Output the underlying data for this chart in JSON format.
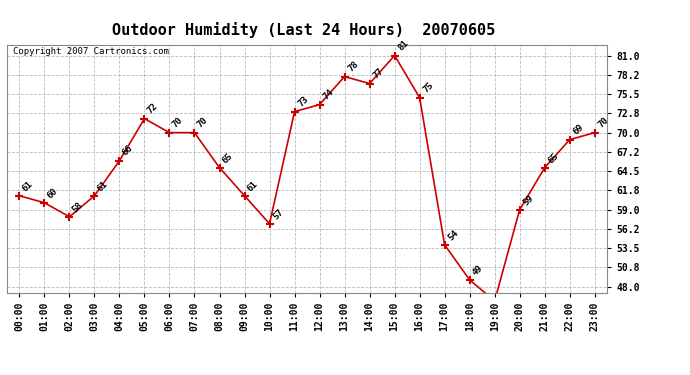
{
  "title": "Outdoor Humidity (Last 24 Hours)  20070605",
  "copyright": "Copyright 2007 Cartronics.com",
  "hours": [
    0,
    1,
    2,
    3,
    4,
    5,
    6,
    7,
    8,
    9,
    10,
    11,
    12,
    13,
    14,
    15,
    16,
    17,
    18,
    19,
    20,
    21,
    22,
    23
  ],
  "hour_labels": [
    "00:00",
    "01:00",
    "02:00",
    "03:00",
    "04:00",
    "05:00",
    "06:00",
    "07:00",
    "08:00",
    "09:00",
    "10:00",
    "11:00",
    "12:00",
    "13:00",
    "14:00",
    "15:00",
    "16:00",
    "17:00",
    "18:00",
    "19:00",
    "20:00",
    "21:00",
    "22:00",
    "23:00"
  ],
  "values": [
    61,
    60,
    58,
    61,
    66,
    72,
    70,
    70,
    65,
    61,
    57,
    73,
    74,
    78,
    77,
    81,
    75,
    54,
    49,
    46,
    59,
    65,
    69,
    70
  ],
  "yticks": [
    48.0,
    50.8,
    53.5,
    56.2,
    59.0,
    61.8,
    64.5,
    67.2,
    70.0,
    72.8,
    75.5,
    78.2,
    81.0
  ],
  "ylim": [
    47.2,
    82.5
  ],
  "xlim": [
    -0.5,
    23.5
  ],
  "line_color": "#cc0000",
  "marker_color": "#cc0000",
  "bg_color": "#ffffff",
  "grid_color": "#bbbbbb",
  "title_fontsize": 11,
  "label_fontsize": 7,
  "copyright_fontsize": 6.5,
  "data_label_fontsize": 6.5
}
